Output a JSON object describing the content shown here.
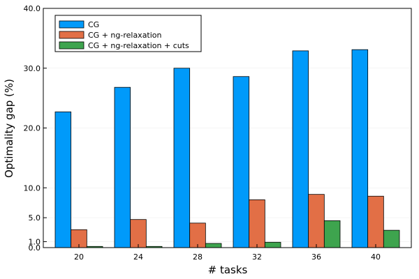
{
  "chart_data": {
    "type": "bar",
    "xlabel": "# tasks",
    "ylabel": "Optimality gap (%)",
    "categories": [
      "20",
      "24",
      "28",
      "32",
      "36",
      "40"
    ],
    "ylim": [
      0,
      40
    ],
    "yticks": [
      0,
      1,
      5,
      10,
      20,
      30,
      40
    ],
    "ytick_labels": [
      "0.0",
      "1.0",
      "5.0",
      "10.0",
      "20.0",
      "30.0",
      "40.0"
    ],
    "grid": true,
    "legend_position": "top-left",
    "series": [
      {
        "name": "CG",
        "color": "#009AFA",
        "values": [
          22.7,
          26.8,
          30.0,
          28.6,
          32.9,
          33.1
        ]
      },
      {
        "name": "CG + ng-relaxation",
        "color": "#E26F46",
        "values": [
          3.0,
          4.7,
          4.1,
          8.0,
          8.9,
          8.6
        ]
      },
      {
        "name": "CG + ng-relaxation + cuts",
        "color": "#3EA44E",
        "values": [
          0.2,
          0.2,
          0.7,
          0.9,
          4.5,
          2.9
        ]
      }
    ]
  }
}
